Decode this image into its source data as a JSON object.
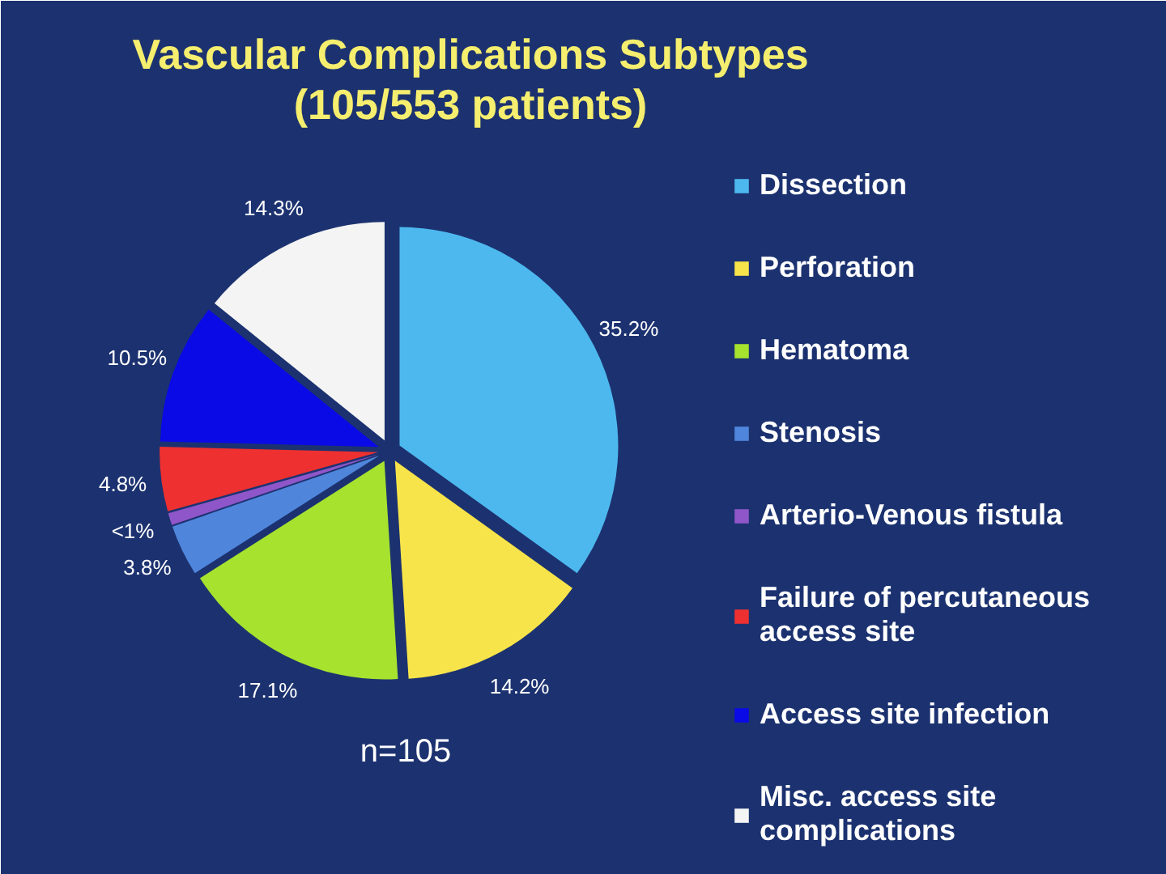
{
  "chart_data": {
    "type": "pie",
    "title": "Vascular Complications Subtypes (105/553 patients)",
    "categories": [
      "Dissection",
      "Perforation",
      "Hematoma",
      "Stenosis",
      "Arterio-Venous fistula",
      "Failure of percutaneous access site",
      "Access site infection",
      "Misc. access site complications"
    ],
    "values": [
      35.2,
      14.2,
      17.1,
      3.8,
      0.9,
      4.8,
      10.5,
      14.3
    ],
    "colors": [
      "#4db8ee",
      "#f7e44a",
      "#a6e22e",
      "#4f86dc",
      "#8e56c8",
      "#ee3030",
      "#0a0ae6",
      "#f4f4f4"
    ],
    "value_labels": [
      "35.2%",
      "14.2%",
      "17.1%",
      "3.8%",
      "<1%",
      "4.8%",
      "10.5%",
      "14.3%"
    ],
    "legend": "right",
    "annotations": [
      "n=105"
    ]
  }
}
